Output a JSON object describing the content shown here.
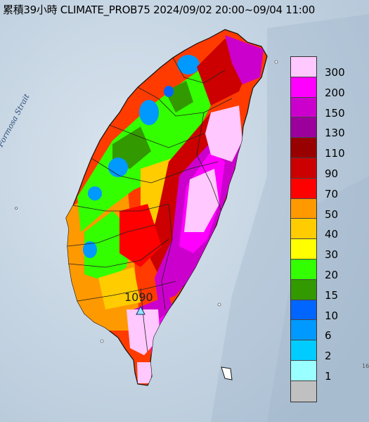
{
  "title": "累積39小時 CLIMATE_PROB75 2024/09/02 20:00~09/04 11:00",
  "strait_label": "Formosa Strait",
  "station": {
    "value": "1090",
    "marker": "triangle-marker-icon"
  },
  "corner_mark": "16",
  "legend": {
    "items": [
      {
        "label": "300",
        "color": "#ffc8ff"
      },
      {
        "label": "200",
        "color": "#ff00ff"
      },
      {
        "label": "150",
        "color": "#cc00cc"
      },
      {
        "label": "130",
        "color": "#9c009c"
      },
      {
        "label": "110",
        "color": "#990000"
      },
      {
        "label": "90",
        "color": "#cc0000"
      },
      {
        "label": "70",
        "color": "#ff0000"
      },
      {
        "label": "50",
        "color": "#ff9900"
      },
      {
        "label": "40",
        "color": "#ffcc00"
      },
      {
        "label": "30",
        "color": "#ffff00"
      },
      {
        "label": "20",
        "color": "#33ff00"
      },
      {
        "label": "15",
        "color": "#339900"
      },
      {
        "label": "10",
        "color": "#0066ff"
      },
      {
        "label": "6",
        "color": "#0099ff"
      },
      {
        "label": "2",
        "color": "#00ccff"
      },
      {
        "label": "1",
        "color": "#99ffff"
      },
      {
        "label": "",
        "color": "#c0c0c0"
      }
    ]
  }
}
